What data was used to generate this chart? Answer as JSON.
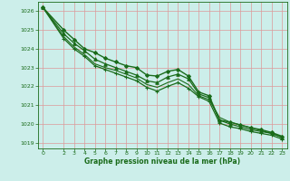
{
  "title": "Graphe pression niveau de la mer (hPa)",
  "background_color": "#cceeea",
  "grid_color": "#dd9999",
  "line_color": "#1a6b1a",
  "xlim": [
    -0.5,
    23.5
  ],
  "ylim": [
    1018.7,
    1026.5
  ],
  "yticks": [
    1019,
    1020,
    1021,
    1022,
    1023,
    1024,
    1025,
    1026
  ],
  "xticks": [
    0,
    2,
    3,
    4,
    5,
    6,
    7,
    8,
    9,
    10,
    11,
    12,
    13,
    14,
    15,
    16,
    17,
    18,
    19,
    20,
    21,
    22,
    23
  ],
  "series": [
    {
      "x": [
        0,
        2,
        3,
        4,
        5,
        6,
        7,
        8,
        9,
        10,
        11,
        12,
        13,
        14,
        15,
        16,
        17,
        18,
        19,
        20,
        21,
        22,
        23
      ],
      "y": [
        1026.2,
        1025.0,
        1024.5,
        1024.0,
        1023.8,
        1023.5,
        1023.3,
        1023.1,
        1023.0,
        1022.6,
        1022.55,
        1022.8,
        1022.9,
        1022.55,
        1021.7,
        1021.5,
        1020.2,
        1020.1,
        1019.95,
        1019.8,
        1019.7,
        1019.55,
        1019.35
      ],
      "marker": "D",
      "markersize": 2.0,
      "linewidth": 1.0,
      "zorder": 5
    },
    {
      "x": [
        0,
        2,
        3,
        4,
        5,
        6,
        7,
        8,
        9,
        10,
        11,
        12,
        13,
        14,
        15,
        16,
        17,
        18,
        19,
        20,
        21,
        22,
        23
      ],
      "y": [
        1026.2,
        1024.8,
        1024.3,
        1023.9,
        1023.45,
        1023.2,
        1023.0,
        1022.8,
        1022.6,
        1022.3,
        1022.2,
        1022.5,
        1022.65,
        1022.4,
        1021.6,
        1021.4,
        1020.2,
        1020.0,
        1019.85,
        1019.7,
        1019.6,
        1019.5,
        1019.3
      ],
      "marker": "^",
      "markersize": 2.5,
      "linewidth": 0.9,
      "zorder": 4
    },
    {
      "x": [
        0,
        2,
        3,
        4,
        5,
        6,
        7,
        8,
        9,
        10,
        11,
        12,
        13,
        14,
        15,
        16,
        17,
        18,
        19,
        20,
        21,
        22,
        23
      ],
      "y": [
        1026.2,
        1024.65,
        1024.1,
        1023.7,
        1023.2,
        1023.0,
        1022.85,
        1022.65,
        1022.45,
        1022.1,
        1021.95,
        1022.2,
        1022.4,
        1022.1,
        1021.5,
        1021.3,
        1020.35,
        1020.1,
        1019.95,
        1019.8,
        1019.65,
        1019.5,
        1019.28
      ],
      "marker": null,
      "markersize": 0,
      "linewidth": 0.8,
      "zorder": 3
    },
    {
      "x": [
        0,
        2,
        3,
        4,
        5,
        6,
        7,
        8,
        9,
        10,
        11,
        12,
        13,
        14,
        15,
        16,
        17,
        18,
        19,
        20,
        21,
        22,
        23
      ],
      "y": [
        1026.2,
        1024.55,
        1024.0,
        1023.6,
        1023.1,
        1022.9,
        1022.7,
        1022.5,
        1022.3,
        1021.95,
        1021.75,
        1022.0,
        1022.2,
        1021.9,
        1021.45,
        1021.2,
        1020.05,
        1019.85,
        1019.75,
        1019.6,
        1019.5,
        1019.4,
        1019.2
      ],
      "marker": "+",
      "markersize": 3.5,
      "linewidth": 0.9,
      "zorder": 4
    }
  ]
}
